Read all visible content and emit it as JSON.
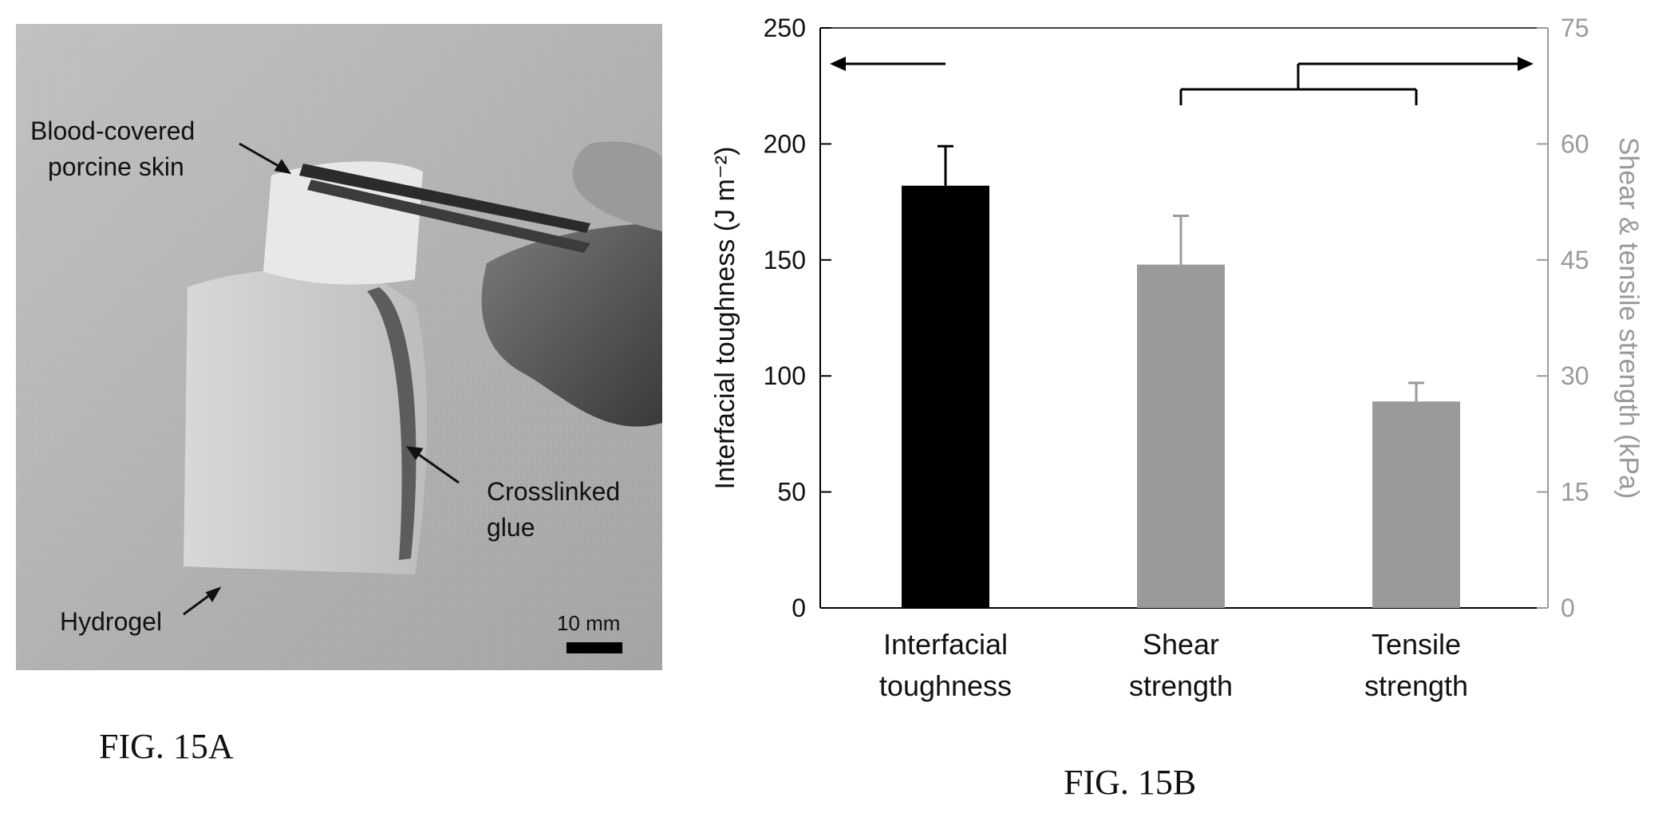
{
  "figure_a": {
    "caption": "FIG. 15A",
    "labels": {
      "skin_line1": "Blood-covered",
      "skin_line2": "porcine skin",
      "glue_line1": "Crosslinked",
      "glue_line2": "glue",
      "hydrogel": "Hydrogel",
      "scale_bar": "10 mm"
    }
  },
  "figure_b": {
    "caption": "FIG. 15B"
  },
  "chart_data": {
    "type": "bar",
    "categories": [
      [
        "Interfacial",
        "toughness"
      ],
      [
        "Shear",
        "strength"
      ],
      [
        "Tensile",
        "strength"
      ]
    ],
    "left_axis": {
      "label": "Interfacial toughness (J m⁻²)",
      "range": [
        0,
        250
      ],
      "ticks": [
        0,
        50,
        100,
        150,
        200,
        250
      ],
      "color": "#111111"
    },
    "right_axis": {
      "label": "Shear & tensile strength (kPa)",
      "range": [
        0,
        75
      ],
      "ticks": [
        0,
        15,
        30,
        45,
        60,
        75
      ],
      "color": "#9a9a9a"
    },
    "bars": [
      {
        "axis": "left",
        "value": 182,
        "error": 17,
        "color": "#000000"
      },
      {
        "axis": "right",
        "value": 44.4,
        "error": 6.3,
        "color": "#9a9a9a"
      },
      {
        "axis": "right",
        "value": 26.7,
        "error": 2.4,
        "color": "#9a9a9a"
      }
    ],
    "grid": false
  }
}
